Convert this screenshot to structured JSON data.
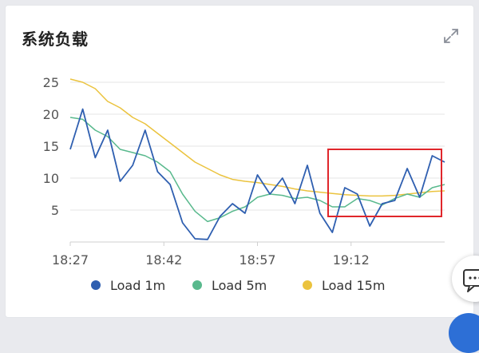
{
  "card": {
    "title": "系统负载",
    "expand_icon": "expand-icon"
  },
  "colors": {
    "load1": "#2f5fb0",
    "load5": "#59b98d",
    "load15": "#ebc33e",
    "highlight": "#e0262b",
    "grid": "#e6e6e6",
    "axis_text": "#555555"
  },
  "chart_data": {
    "type": "line",
    "title": "",
    "xlabel": "",
    "ylabel": "",
    "ylim": [
      0,
      25
    ],
    "yticks": [
      5,
      10,
      15,
      20,
      25
    ],
    "xlim": [
      "18:27",
      "19:27"
    ],
    "xticks": [
      "18:27",
      "18:42",
      "18:57",
      "19:12"
    ],
    "grid": true,
    "legend": "bottom",
    "x": [
      "18:27",
      "18:29",
      "18:31",
      "18:33",
      "18:35",
      "18:37",
      "18:39",
      "18:41",
      "18:43",
      "18:45",
      "18:47",
      "18:49",
      "18:51",
      "18:53",
      "18:55",
      "18:57",
      "18:59",
      "19:01",
      "19:03",
      "19:05",
      "19:07",
      "19:09",
      "19:11",
      "19:13",
      "19:15",
      "19:17",
      "19:19",
      "19:21",
      "19:23",
      "19:25",
      "19:27"
    ],
    "series": [
      {
        "name": "Load 1m",
        "values": [
          14.5,
          20.8,
          13.2,
          17.5,
          9.5,
          12.0,
          17.5,
          11.0,
          9.0,
          3.0,
          0.5,
          0.4,
          4.0,
          6.0,
          4.5,
          10.5,
          7.5,
          10.0,
          6.0,
          12.0,
          4.5,
          1.5,
          8.5,
          7.5,
          2.5,
          6.0,
          6.5,
          11.5,
          7.0,
          13.5,
          12.5
        ]
      },
      {
        "name": "Load 5m",
        "values": [
          19.5,
          19.2,
          17.5,
          16.5,
          14.5,
          14.0,
          13.5,
          12.5,
          11.0,
          7.5,
          4.8,
          3.2,
          3.8,
          4.8,
          5.5,
          7.0,
          7.5,
          7.3,
          6.8,
          7.0,
          6.5,
          5.5,
          5.5,
          6.8,
          6.5,
          5.8,
          6.8,
          7.5,
          7.0,
          8.5,
          9.0
        ]
      },
      {
        "name": "Load 15m",
        "values": [
          25.5,
          25.0,
          24.0,
          22.0,
          21.0,
          19.5,
          18.5,
          17.0,
          15.5,
          14.0,
          12.5,
          11.5,
          10.5,
          9.8,
          9.5,
          9.3,
          9.0,
          8.7,
          8.3,
          8.0,
          7.8,
          7.6,
          7.4,
          7.3,
          7.2,
          7.2,
          7.3,
          7.5,
          7.7,
          7.9,
          8.0
        ]
      }
    ]
  }
}
